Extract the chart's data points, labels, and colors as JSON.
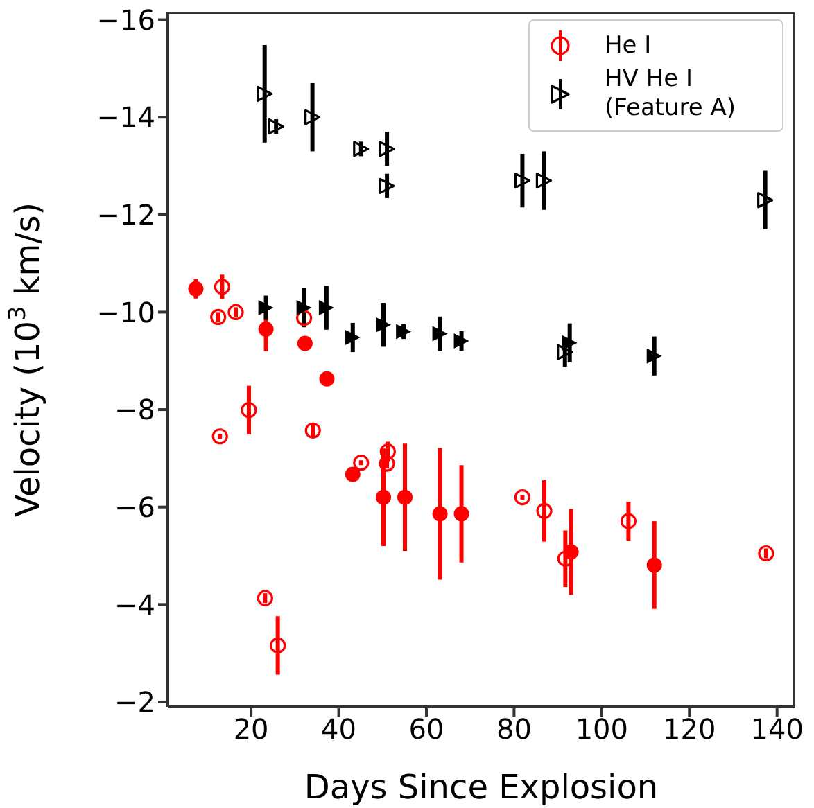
{
  "chart_data": {
    "type": "scatter",
    "xlabel": "Days Since Explosion",
    "ylabel": "Velocity (10$^{3}$ km/s)",
    "xlim": [
      1,
      144
    ],
    "xticks": [
      20,
      40,
      60,
      80,
      100,
      120,
      140
    ],
    "ylim": [
      -1.9,
      -16.15
    ],
    "yticks": [
      -2,
      -4,
      -6,
      -8,
      -10,
      -12,
      -14,
      -16
    ],
    "legend": "top right",
    "series": [
      {
        "name": "He I",
        "color": "#ff0000",
        "marker": "circle",
        "x": [
          13.4,
          12.5,
          16.5,
          32.1,
          19.5,
          12.9,
          34.1,
          23.2,
          26.1,
          45.1,
          51.2,
          51.0,
          81.9,
          86.9,
          91.7,
          106.1,
          137.5
        ],
        "values": [
          -10.52,
          -9.9,
          -10.0,
          -9.88,
          -7.99,
          -7.45,
          -7.57,
          -4.13,
          -3.16,
          -6.91,
          -7.14,
          -6.89,
          -6.2,
          -5.92,
          -4.94,
          -5.71,
          -5.05
        ],
        "errors": [
          0.25,
          0.1,
          0.1,
          0.15,
          0.5,
          0.05,
          0.15,
          0.1,
          0.6,
          0.05,
          0.2,
          0.1,
          0.05,
          0.63,
          0.58,
          0.4,
          0.1
        ]
      },
      {
        "color": "#ff0000",
        "marker": "circle",
        "x": [
          7.4,
          23.4,
          32.3,
          37.3,
          43.2,
          50.2,
          55.1,
          63.1,
          68.0,
          93.0,
          112.0
        ],
        "values": [
          -10.48,
          -9.65,
          -9.36,
          -8.63,
          -6.67,
          -6.2,
          -6.2,
          -5.86,
          -5.86,
          -5.08,
          -4.81
        ],
        "errors": [
          0.2,
          0.45,
          0.1,
          0.1,
          0.1,
          1.0,
          1.1,
          1.35,
          1.0,
          0.88,
          0.9
        ]
      },
      {
        "name": "HV He I (Feature A)",
        "color": "#000000",
        "marker": "triangle",
        "x": [
          23.1,
          25.7,
          34.0,
          45.1,
          51.0,
          51.0,
          81.9,
          86.8,
          137.3,
          91.6
        ],
        "values": [
          -14.48,
          -13.81,
          -14.0,
          -13.35,
          -13.35,
          -12.59,
          -12.7,
          -12.7,
          -12.3,
          -9.18
        ],
        "errors": [
          1.0,
          0.15,
          0.7,
          0.15,
          0.35,
          0.25,
          0.55,
          0.6,
          0.6,
          0.3
        ]
      },
      {
        "color": "#000000",
        "marker": "triangle",
        "x": [
          23.4,
          32.1,
          37.2,
          43.2,
          50.2,
          54.8,
          63.1,
          68.0,
          92.7,
          112.0
        ],
        "values": [
          -10.09,
          -10.09,
          -10.09,
          -9.48,
          -9.74,
          -9.6,
          -9.56,
          -9.41,
          -9.37,
          -9.1
        ],
        "errors": [
          0.25,
          0.4,
          0.45,
          0.3,
          0.45,
          0.15,
          0.35,
          0.2,
          0.4,
          0.4
        ]
      }
    ]
  }
}
